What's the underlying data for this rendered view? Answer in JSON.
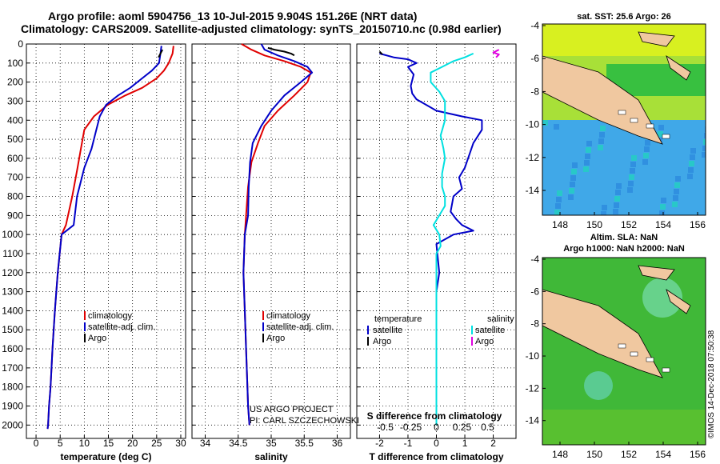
{
  "header": {
    "title_line1": "Argo profile: aoml 5904756_13 10-Jul-2015 9.904S 151.26E (NRT data)",
    "title_line2": "Climatology: CARS2009. Satellite-adjusted climatology: synTS_20150710.nc (0.98d earlier)"
  },
  "colors": {
    "climatology": "#e00000",
    "satellite": "#0000c8",
    "argo": "#000000",
    "sal_satellite": "#00e0e0",
    "sal_argo": "#e000e0"
  },
  "depth_axis": {
    "ticks": [
      0,
      100,
      200,
      300,
      400,
      500,
      600,
      700,
      800,
      900,
      1000,
      1100,
      1200,
      1300,
      1400,
      1500,
      1600,
      1700,
      1800,
      1900,
      2000
    ]
  },
  "chart_data": [
    {
      "type": "line",
      "name": "temperature-panel",
      "xlabel": "temperature (deg C)",
      "x_ticks": [
        0,
        5,
        10,
        15,
        20,
        25,
        30
      ],
      "xlim": [
        -2,
        31
      ],
      "ylim": [
        0,
        2070
      ],
      "legend": {
        "placement": "bottom-left",
        "entries": [
          "climatology",
          "satellite-adj. clim.",
          "Argo"
        ]
      },
      "series": [
        {
          "name": "climatology",
          "color": "#e00000",
          "x": [
            28.5,
            28.3,
            27.5,
            26.5,
            25,
            22,
            18.5,
            14.8,
            12,
            10,
            9.3,
            8.6,
            7.5,
            6.2,
            5.3,
            4.5,
            3.9,
            3.4,
            3.0,
            2.7,
            2.5,
            2.4
          ],
          "y": [
            10,
            50,
            100,
            140,
            180,
            230,
            270,
            320,
            380,
            450,
            550,
            650,
            800,
            950,
            1000,
            1200,
            1400,
            1600,
            1800,
            1900,
            2000,
            2020
          ]
        },
        {
          "name": "satellite-adj. clim.",
          "color": "#0000c8",
          "x": [
            26,
            25.8,
            25.5,
            24,
            22,
            19.5,
            17,
            14.5,
            13.2,
            12.5,
            11.5,
            10,
            8.5,
            7.8,
            5.3,
            4.5,
            3.9,
            3.4,
            3.0,
            2.7,
            2.5,
            2.4
          ],
          "y": [
            10,
            50,
            100,
            140,
            180,
            230,
            270,
            320,
            380,
            450,
            550,
            650,
            800,
            950,
            1000,
            1200,
            1400,
            1600,
            1800,
            1900,
            2000,
            2020
          ]
        },
        {
          "name": "Argo",
          "color": "#000000",
          "x": [
            26.2,
            25.9,
            25.7,
            25.4
          ],
          "y": [
            30,
            45,
            55,
            70
          ]
        }
      ]
    },
    {
      "type": "line",
      "name": "salinity-panel",
      "xlabel": "salinity",
      "x_ticks": [
        34,
        34.5,
        35,
        35.5,
        36
      ],
      "xlim": [
        33.8,
        36.2
      ],
      "ylim": [
        0,
        2070
      ],
      "legend": {
        "placement": "bottom-left",
        "entries": [
          "climatology",
          "satellite-adj. clim.",
          "Argo"
        ]
      },
      "credit": [
        "US ARGO PROJECT",
        "PI: CARL SZCZECHOWSKI"
      ],
      "series": [
        {
          "name": "climatology",
          "color": "#e00000",
          "x": [
            34.55,
            34.7,
            34.9,
            35.2,
            35.45,
            35.6,
            35.55,
            35.35,
            35.1,
            34.9,
            34.8,
            34.7,
            34.65,
            34.62,
            34.6,
            34.58,
            34.6,
            34.62,
            34.64,
            34.65,
            34.67
          ],
          "y": [
            0,
            30,
            60,
            90,
            120,
            150,
            200,
            270,
            350,
            430,
            520,
            620,
            750,
            900,
            1000,
            1200,
            1400,
            1600,
            1800,
            1900,
            2000
          ]
        },
        {
          "name": "satellite-adj. clim.",
          "color": "#0000c8",
          "x": [
            34.85,
            34.9,
            35.1,
            35.35,
            35.55,
            35.62,
            35.45,
            35.2,
            35.0,
            34.85,
            34.72,
            34.68,
            34.66,
            34.65,
            34.6,
            34.58,
            34.6,
            34.62,
            34.64,
            34.65,
            34.67
          ],
          "y": [
            0,
            30,
            60,
            90,
            120,
            150,
            200,
            270,
            350,
            430,
            520,
            620,
            750,
            900,
            1000,
            1200,
            1400,
            1600,
            1800,
            1900,
            2000
          ]
        },
        {
          "name": "Argo",
          "color": "#000000",
          "x": [
            34.95,
            35.05,
            35.2,
            35.3,
            35.35
          ],
          "y": [
            20,
            30,
            40,
            50,
            60
          ]
        }
      ]
    },
    {
      "type": "line",
      "name": "difference-panel",
      "xlabel": "T difference from climatology",
      "xlabel_top": "S difference from climatology",
      "x_ticks": [
        -2,
        -1,
        0,
        1,
        2
      ],
      "top_ticks": [
        "-0.5",
        "-0.25",
        "0",
        "0.25",
        "0.5"
      ],
      "top_tick_positions": [
        -1.8,
        -0.9,
        0,
        0.9,
        1.8
      ],
      "xlim": [
        -2.8,
        2.8
      ],
      "ylim": [
        0,
        2070
      ],
      "legend": {
        "placement": "bottom",
        "temperature_title": "temperature",
        "temperature_entries": [
          "satellite",
          "Argo"
        ],
        "salinity_title": "salinity",
        "salinity_entries": [
          "satellite",
          "Argo"
        ]
      },
      "series": [
        {
          "name": "temperature satellite",
          "color": "#0000c8",
          "x": [
            -2,
            -1.5,
            -1.0,
            -0.7,
            -1.0,
            -0.8,
            -0.9,
            -0.85,
            -0.7,
            0,
            0.9,
            1.6,
            1.6,
            1.3,
            1.0,
            0.8,
            0.9,
            0.6,
            0.5,
            0.7,
            0.9,
            1.3,
            0.6,
            0,
            0.1,
            0,
            0,
            0,
            0
          ],
          "y": [
            50,
            70,
            80,
            100,
            120,
            160,
            220,
            260,
            290,
            350,
            380,
            400,
            450,
            520,
            650,
            700,
            760,
            800,
            880,
            920,
            950,
            980,
            1000,
            1050,
            1200,
            1300,
            1500,
            1800,
            1900
          ]
        },
        {
          "name": "salinity satellite",
          "color": "#00e0e0",
          "x": [
            1.3,
            1.0,
            0.6,
            0.2,
            -0.2,
            -0.2,
            0.1,
            0.3,
            0.3,
            0.15,
            0.25,
            0.3,
            0.2,
            0.2,
            0.3,
            0.3,
            0.1,
            -0.1,
            0.1,
            0.15,
            0,
            0,
            0,
            0,
            0,
            0
          ],
          "y": [
            50,
            70,
            90,
            120,
            150,
            200,
            250,
            300,
            400,
            480,
            550,
            600,
            680,
            750,
            800,
            850,
            900,
            950,
            1000,
            1060,
            1100,
            1200,
            1400,
            1600,
            1900,
            2000
          ]
        },
        {
          "name": "temperature Argo",
          "color": "#000000",
          "x": [
            -2,
            -1.9
          ],
          "y": [
            40,
            55
          ]
        },
        {
          "name": "salinity Argo",
          "color": "#e000e0",
          "x": [
            2.2,
            2.0,
            2.2,
            2.1
          ],
          "y": [
            30,
            45,
            55,
            70
          ]
        }
      ]
    }
  ],
  "maps": {
    "sst": {
      "title": "sat. SST: 25.6 Argo: 26",
      "lat_ticks": [
        "-4",
        "-6",
        "-8",
        "-10",
        "-12",
        "-14"
      ],
      "lon_ticks": [
        "148",
        "150",
        "152",
        "154",
        "156"
      ]
    },
    "sla": {
      "title_line1": "Altim. SLA: NaN",
      "title_line2": "Argo h1000: NaN h2000: NaN",
      "lat_ticks": [
        "-4",
        "-6",
        "-8",
        "-10",
        "-12",
        "-14"
      ],
      "lon_ticks": [
        "148",
        "150",
        "152",
        "154",
        "156"
      ]
    }
  },
  "footer": {
    "stamp": "©IMOS 14-Dec-2018 07:50:38"
  }
}
